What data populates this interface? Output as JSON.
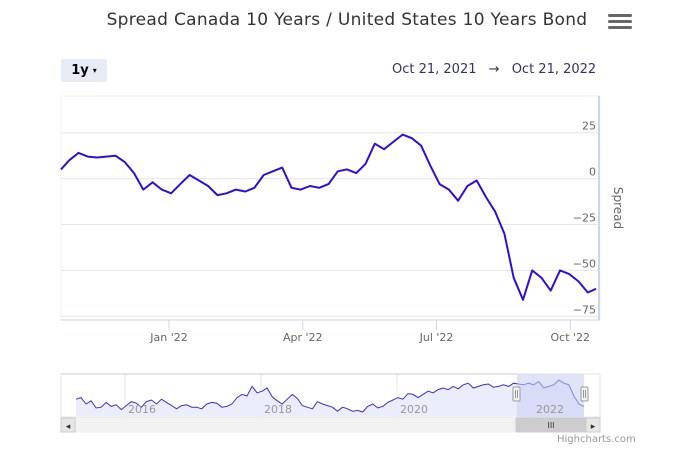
{
  "header": {
    "title": "Spread Canada 10 Years / United States 10 Years Bond",
    "menu_icon": "hamburger-menu-icon"
  },
  "range_selector": {
    "button_label": "1y",
    "caret": "▾",
    "from_date": "Oct 21, 2021",
    "arrow": "→",
    "to_date": "Oct 21, 2022"
  },
  "credits": "Highcharts.com",
  "colors": {
    "series": "#2d0fd6",
    "navigator_mask": "#c8cdf0",
    "grid": "#e6e6e6",
    "axis_text": "#666666"
  },
  "chart_data": {
    "type": "line",
    "title": "Spread Canada 10 Years / United States 10 Years Bond",
    "ylabel": "Spread",
    "xlabel": "",
    "ylim": [
      -77,
      45
    ],
    "yticks": [
      25,
      0,
      -25,
      -50,
      -75
    ],
    "ytick_labels": [
      "25",
      "0",
      "−25",
      "−50",
      "−75"
    ],
    "xticks": [
      {
        "label": "Jan '22",
        "week": 10.5
      },
      {
        "label": "Apr '22",
        "week": 23.5
      },
      {
        "label": "Jul '22",
        "week": 36.5
      },
      {
        "label": "Oct '22",
        "week": 49.5
      }
    ],
    "series": [
      {
        "name": "Spread",
        "x_unit": "weeks since Oct 21, 2021",
        "x": [
          0,
          0.8,
          1.7,
          2.6,
          3.5,
          4.4,
          5.3,
          6.2,
          7.1,
          8.0,
          8.9,
          9.8,
          10.7,
          11.6,
          12.5,
          13.4,
          14.3,
          15.2,
          16.1,
          17.0,
          17.9,
          18.8,
          19.7,
          20.6,
          21.5,
          22.4,
          23.3,
          24.2,
          25.1,
          26.0,
          26.9,
          27.8,
          28.7,
          29.6,
          30.5,
          31.4,
          32.3,
          33.2,
          34.1,
          35.0,
          35.9,
          36.8,
          37.7,
          38.6,
          39.5,
          40.4,
          41.3,
          42.2,
          43.1,
          44.0,
          44.9,
          45.8,
          46.7,
          47.6,
          48.5,
          49.4,
          50.3,
          51.2,
          52.0
        ],
        "y": [
          5,
          10,
          14,
          12,
          11.5,
          12,
          12.5,
          9,
          3,
          -6,
          -2,
          -6,
          -8,
          -3,
          2,
          -1,
          -4,
          -9,
          -8,
          -6,
          -7,
          -5,
          2,
          4,
          6,
          -5,
          -6,
          -4,
          -5,
          -3,
          4,
          5,
          3,
          8,
          19,
          16,
          20,
          24,
          22,
          18,
          7,
          -3,
          -6,
          -12,
          -4,
          -1,
          -10,
          -18,
          -30,
          -54,
          -66,
          -50,
          -54,
          -61,
          -50,
          -52,
          -56,
          -62,
          -60
        ]
      }
    ],
    "navigator": {
      "labels": [
        "2016",
        "2018",
        "2020",
        "2022"
      ],
      "scrollbar_handle": "III",
      "left_arrow": "◂",
      "right_arrow": "▸",
      "y": [
        6,
        8,
        0,
        4,
        -5,
        -4,
        2,
        -3,
        -1,
        -7,
        -2,
        3,
        1,
        -4,
        3,
        5,
        0,
        6,
        2,
        -2,
        -6,
        -2,
        -1,
        -4,
        -4,
        -6,
        0,
        2,
        1,
        -4,
        -3,
        0,
        8,
        12,
        10,
        22,
        14,
        16,
        20,
        9,
        4,
        0,
        6,
        12,
        7,
        -2,
        -4,
        -6,
        3,
        0,
        -2,
        -4,
        -9,
        -4,
        -6,
        -9,
        -8,
        -10,
        -3,
        0,
        -5,
        -3,
        2,
        5,
        8,
        6,
        13,
        12,
        8,
        12,
        16,
        14,
        18,
        20,
        18,
        22,
        19,
        24,
        26,
        20,
        22,
        24,
        25,
        21,
        22,
        24,
        22,
        26,
        25,
        24,
        26,
        24,
        28,
        20,
        22,
        24,
        30,
        26,
        24,
        10,
        0,
        -3
      ]
    }
  }
}
